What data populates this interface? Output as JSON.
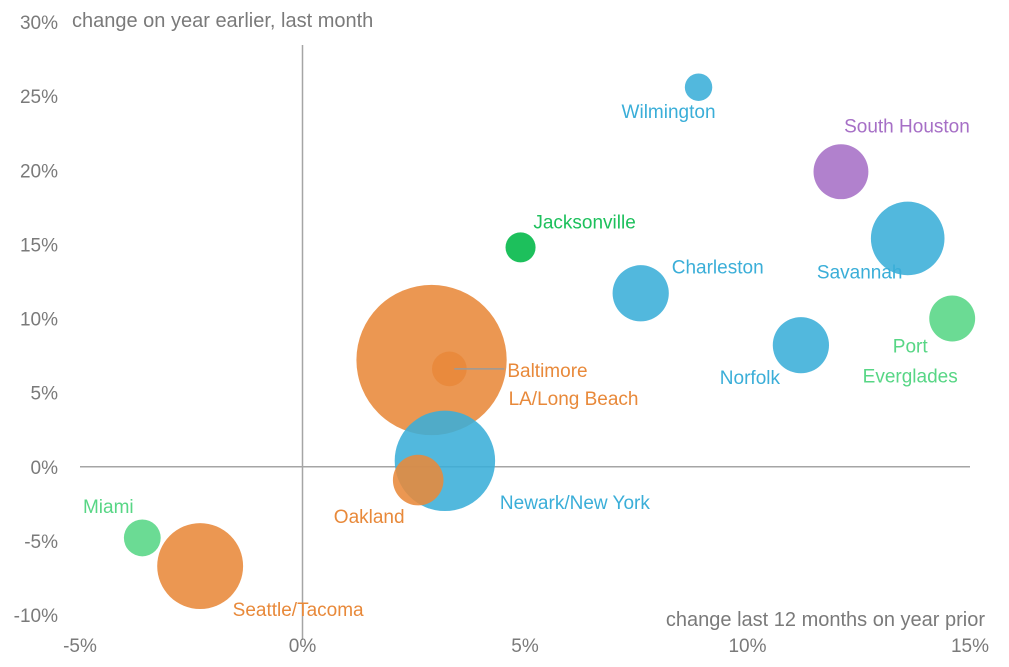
{
  "chart_data": {
    "type": "scatter",
    "subtype": "bubble",
    "ylabel": "change on year earlier, last month",
    "xlabel": "change last 12 months on year prior",
    "xlim": [
      -5,
      15
    ],
    "ylim": [
      -10,
      30
    ],
    "xticks": [
      -5,
      0,
      5,
      10,
      15
    ],
    "xtick_labels": [
      "-5%",
      "0%",
      "5%",
      "10%",
      "15%"
    ],
    "yticks": [
      -10,
      -5,
      0,
      5,
      10,
      15,
      20,
      25,
      30
    ],
    "ytick_labels": [
      "-10%",
      "-5%",
      "0%",
      "5%",
      "10%",
      "15%",
      "20%",
      "25%",
      "30%"
    ],
    "colors": {
      "blue": "#3aaed8",
      "orange": "#e8893a",
      "green": "#57d685",
      "purple": "#a66fc6",
      "dark_green": "#1dc05c",
      "axis": "#a5a5a5"
    },
    "points": [
      {
        "name": "Wilmington",
        "x": 8.9,
        "y": 25.6,
        "size": 0.5,
        "color": "blue"
      },
      {
        "name": "South Houston",
        "x": 12.1,
        "y": 19.9,
        "size": 2.0,
        "color": "purple"
      },
      {
        "name": "Jacksonville",
        "x": 4.9,
        "y": 14.8,
        "size": 0.6,
        "color": "dark_green"
      },
      {
        "name": "Savannah",
        "x": 13.6,
        "y": 15.4,
        "size": 3.6,
        "color": "blue"
      },
      {
        "name": "Charleston",
        "x": 7.6,
        "y": 11.7,
        "size": 2.1,
        "color": "blue"
      },
      {
        "name": "Port Everglades",
        "x": 14.6,
        "y": 10.0,
        "size": 1.4,
        "color": "green"
      },
      {
        "name": "Norfolk",
        "x": 11.2,
        "y": 8.2,
        "size": 2.1,
        "color": "blue"
      },
      {
        "name": "LA/Long Beach",
        "x": 2.9,
        "y": 7.2,
        "size": 15.0,
        "color": "orange"
      },
      {
        "name": "Baltimore",
        "x": 3.3,
        "y": 6.6,
        "size": 0.8,
        "color": "orange"
      },
      {
        "name": "Newark/New York",
        "x": 3.2,
        "y": 0.4,
        "size": 6.7,
        "color": "blue"
      },
      {
        "name": "Oakland",
        "x": 2.6,
        "y": -0.9,
        "size": 1.7,
        "color": "orange"
      },
      {
        "name": "Miami",
        "x": -3.6,
        "y": -4.8,
        "size": 0.9,
        "color": "green"
      },
      {
        "name": "Seattle/Tacoma",
        "x": -2.3,
        "y": -6.7,
        "size": 4.9,
        "color": "orange"
      }
    ],
    "label_lines": {
      "Port Everglades": [
        "Port",
        "Everglades"
      ]
    }
  }
}
